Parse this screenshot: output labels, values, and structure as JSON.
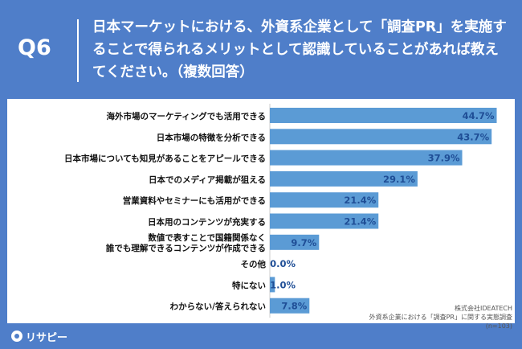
{
  "question": {
    "label": "Q6",
    "title": "日本マーケットにおける、外資系企業として「調査PR」を実施することで得られるメリットとして認識していることがあれば教えてください。（複数回答）"
  },
  "source": {
    "company": "株式会社IDEATECH",
    "survey": "外資系企業における「調査PR」に関する実態調査",
    "n": "(n=103)"
  },
  "brand": {
    "name": "リサピー"
  },
  "colors": {
    "background": "#4f7ec9",
    "bar": "#5b9bd5",
    "label": "#1f4e96"
  },
  "chart_data": {
    "type": "bar",
    "orientation": "horizontal",
    "categories": [
      [
        "海外市場のマーケティングでも活用できる"
      ],
      [
        "日本市場の特徴を分析できる"
      ],
      [
        "日本市場についても知見があることをアピールできる"
      ],
      [
        "日本でのメディア掲載が狙える"
      ],
      [
        "営業資料やセミナーにも活用ができる"
      ],
      [
        "日本用のコンテンツが充実する"
      ],
      [
        "数値で表すことで国籍関係なく",
        "誰でも理解できるコンテンツが作成できる"
      ],
      [
        "その他"
      ],
      [
        "特にない"
      ],
      [
        "わからない/答えられない"
      ]
    ],
    "values": [
      44.7,
      43.7,
      37.9,
      29.1,
      21.4,
      21.4,
      9.7,
      0.0,
      1.0,
      7.8
    ],
    "value_labels": [
      "44.7%",
      "43.7%",
      "37.9%",
      "29.1%",
      "21.4%",
      "21.4%",
      "9.7%",
      "0.0%",
      "1.0%",
      "7.8%"
    ],
    "xlim": [
      0,
      50
    ]
  }
}
